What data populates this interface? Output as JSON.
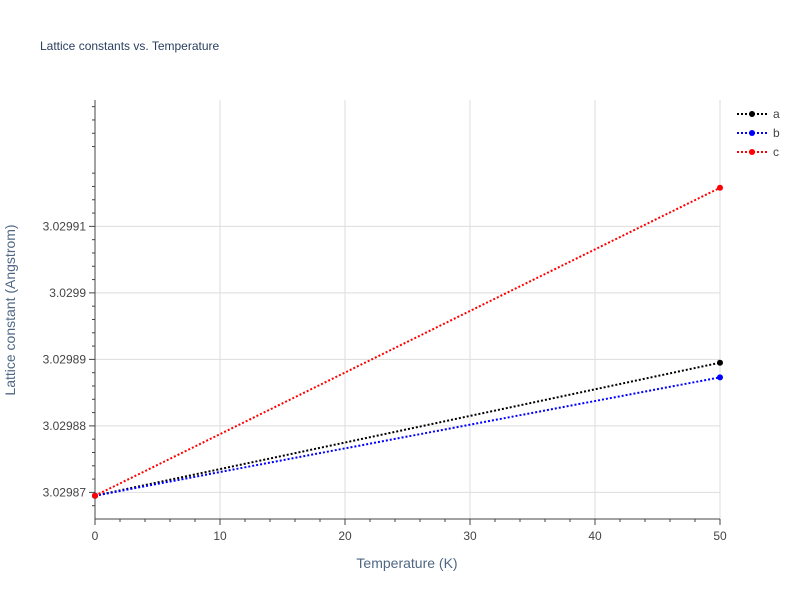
{
  "chart_data": {
    "type": "line",
    "title": "Lattice constants vs. Temperature",
    "xlabel": "Temperature (K)",
    "ylabel": "Lattice constant (Angstrom)",
    "x": [
      0,
      50
    ],
    "xlim": [
      0,
      50
    ],
    "ylim": [
      3.029866,
      3.029929
    ],
    "x_ticks": [
      "0",
      "10",
      "20",
      "30",
      "40",
      "50"
    ],
    "y_ticks": [
      "3.02987",
      "3.02988",
      "3.02989",
      "3.0299",
      "3.02991"
    ],
    "grid": true,
    "legend_position": "top-right",
    "series": [
      {
        "name": "a",
        "color": "#000000",
        "values": [
          3.0298695,
          3.0298895
        ]
      },
      {
        "name": "b",
        "color": "#0000ff",
        "values": [
          3.0298695,
          3.0298873
        ]
      },
      {
        "name": "c",
        "color": "#ff0000",
        "values": [
          3.0298695,
          3.0299158
        ]
      }
    ]
  }
}
